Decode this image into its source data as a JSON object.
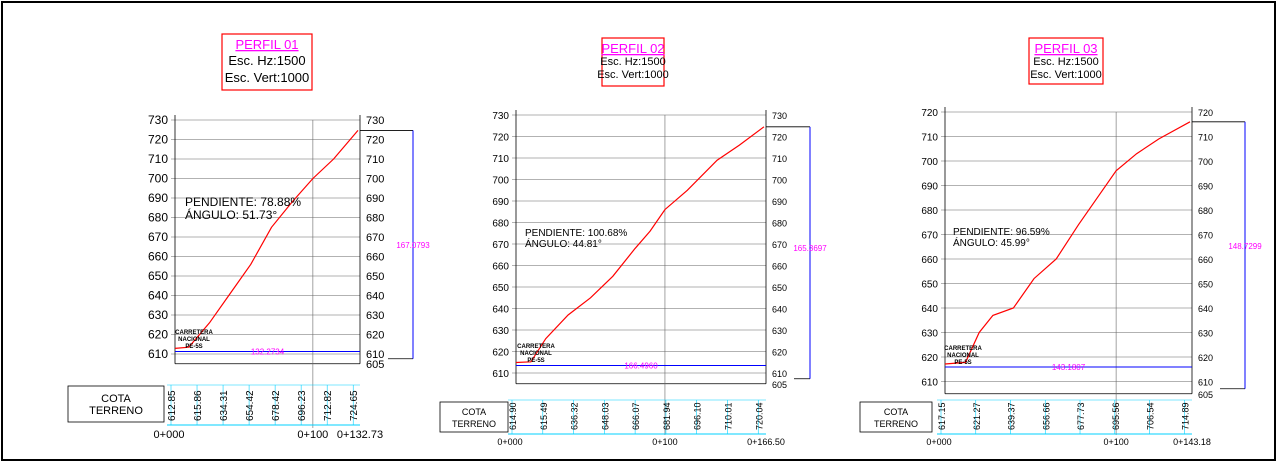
{
  "colors": {
    "profile_line": "#ff0000",
    "title_box": "#ff0000",
    "title_text": "#ff00ff",
    "dimension": "#0000ff",
    "dim_text": "#ff00ff",
    "base_line": "#0000ff",
    "table": "#00d0ff",
    "grid": "#666666",
    "text": "#000000"
  },
  "profiles": [
    {
      "title": "PERFIL 01",
      "scale_h": "Esc. Hz:1500",
      "scale_v": "Esc. Vert:1000",
      "slope_label": "PENDIENTE: 78.88%",
      "angle_label": "ÁNGULO: 51.73°",
      "road_label": [
        "CARRETERA",
        "NACIONAL",
        "PE-5S"
      ],
      "height_dim": "167.0793",
      "length_dim": "132.2734",
      "table_label": [
        "COTA",
        "TERRENO"
      ],
      "y_ticks": [
        "730",
        "720",
        "710",
        "700",
        "690",
        "680",
        "670",
        "660",
        "650",
        "640",
        "630",
        "620",
        "610"
      ],
      "y_ticks_right_bottom": "605",
      "cotas": [
        "612.85",
        "615.86",
        "634.31",
        "654.42",
        "678.42",
        "696.23",
        "712.82",
        "724.65"
      ],
      "stations": [
        "0+000",
        "0+100",
        "0+132.73"
      ],
      "chart_data": {
        "type": "line",
        "x": [
          0,
          10,
          25,
          40,
          55,
          70,
          85,
          100,
          115,
          132.73
        ],
        "y": [
          612.85,
          613.5,
          626,
          641,
          656,
          675,
          688,
          700,
          710,
          724.65
        ],
        "ylim": [
          605,
          730
        ],
        "xlim": [
          0,
          132.73
        ]
      }
    },
    {
      "title": "PERFIL 02",
      "scale_h": "Esc. Hz:1500",
      "scale_v": "Esc. Vert:1000",
      "slope_label": "PENDIENTE: 100.68%",
      "angle_label": "ÁNGULO: 44.81°",
      "road_label": [
        "CARRETERA",
        "NACIONAL",
        "PE-5S"
      ],
      "height_dim": "165.3697",
      "length_dim": "166.4960",
      "table_label": [
        "COTA",
        "TERRENO"
      ],
      "y_ticks": [
        "730",
        "720",
        "710",
        "700",
        "690",
        "680",
        "670",
        "660",
        "650",
        "640",
        "630",
        "620",
        "610"
      ],
      "y_ticks_right_bottom": "605",
      "cotas": [
        "614.90",
        "615.49",
        "636.32",
        "648.03",
        "666.07",
        "681.94",
        "696.10",
        "710.01",
        "720.04"
      ],
      "stations": [
        "0+000",
        "0+100",
        "0+166.50"
      ],
      "chart_data": {
        "type": "line",
        "x": [
          0,
          10,
          20,
          35,
          50,
          65,
          80,
          90,
          100,
          115,
          135,
          150,
          166.5
        ],
        "y": [
          614.9,
          615.2,
          626,
          637,
          645,
          655,
          668,
          676,
          686,
          695,
          709,
          716,
          724.5
        ],
        "ylim": [
          605,
          730
        ],
        "xlim": [
          0,
          166.5
        ]
      }
    },
    {
      "title": "PERFIL 03",
      "scale_h": "Esc. Hz:1500",
      "scale_v": "Esc. Vert:1000",
      "slope_label": "PENDIENTE: 96.59%",
      "angle_label": "ÁNGULO: 45.99°",
      "road_label": [
        "CARRETERA",
        "NACIONAL",
        "PE-5S"
      ],
      "height_dim": "148.7299",
      "length_dim": "143.1807",
      "table_label": [
        "COTA",
        "TERRENO"
      ],
      "y_ticks": [
        "720",
        "710",
        "700",
        "690",
        "680",
        "670",
        "660",
        "650",
        "640",
        "630",
        "620",
        "610"
      ],
      "y_ticks_right_bottom": "605",
      "cotas": [
        "617.15",
        "621.27",
        "639.37",
        "656.66",
        "677.73",
        "695.56",
        "706.54",
        "714.89"
      ],
      "stations": [
        "0+000",
        "0+100",
        "0+143.18"
      ],
      "chart_data": {
        "type": "line",
        "x": [
          0,
          12,
          20,
          28,
          40,
          52,
          65,
          78,
          90,
          100,
          112,
          125,
          143.18
        ],
        "y": [
          617.15,
          617.8,
          630,
          637,
          640,
          652,
          660,
          674,
          686,
          696,
          703,
          709,
          716
        ],
        "ylim": [
          605,
          720
        ],
        "xlim": [
          0,
          143.18
        ]
      }
    }
  ]
}
